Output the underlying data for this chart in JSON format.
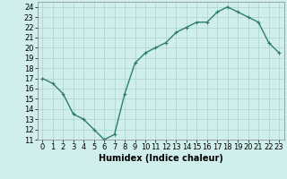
{
  "x": [
    0,
    1,
    2,
    3,
    4,
    5,
    6,
    7,
    8,
    9,
    10,
    11,
    12,
    13,
    14,
    15,
    16,
    17,
    18,
    19,
    20,
    21,
    22,
    23
  ],
  "y": [
    17,
    16.5,
    15.5,
    13.5,
    13,
    12,
    11,
    11.5,
    15.5,
    18.5,
    19.5,
    20,
    20.5,
    21.5,
    22,
    22.5,
    22.5,
    23.5,
    24,
    23.5,
    23,
    22.5,
    20.5,
    19.5
  ],
  "line_color": "#2e7d6e",
  "marker": "+",
  "bg_color": "#d0eeeb",
  "grid_color": "#b0d8d4",
  "xlabel": "Humidex (Indice chaleur)",
  "xlim": [
    -0.5,
    23.5
  ],
  "ylim": [
    11,
    24.5
  ],
  "yticks": [
    11,
    12,
    13,
    14,
    15,
    16,
    17,
    18,
    19,
    20,
    21,
    22,
    23,
    24
  ],
  "xticks": [
    0,
    1,
    2,
    3,
    4,
    5,
    6,
    7,
    8,
    9,
    10,
    11,
    12,
    13,
    14,
    15,
    16,
    17,
    18,
    19,
    20,
    21,
    22,
    23
  ],
  "xlabel_fontsize": 7,
  "tick_fontsize": 6,
  "line_width": 1.0,
  "marker_size": 3
}
